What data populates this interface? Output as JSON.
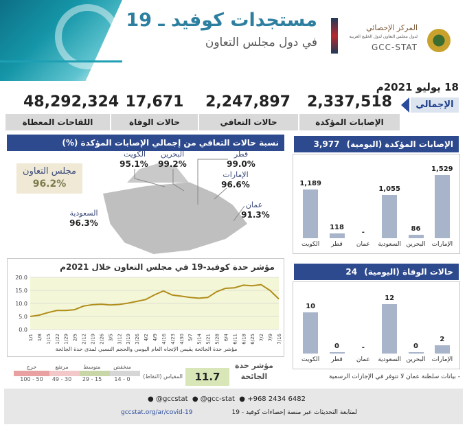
{
  "header": {
    "title": "مستجدات كوفيد ـ 19",
    "subtitle": "في دول مجلس التعاون",
    "org_ar": "المركز الإحصائي",
    "org_sub": "لدول مجلس التعاون لدول الخليج العربية",
    "org_en": "GCC-STAT"
  },
  "date": "18 يوليو 2021م",
  "totals": {
    "badge": "الإجمالي",
    "items": [
      {
        "label": "الإصابات المؤكدة",
        "value": "2,337,518"
      },
      {
        "label": "حالات التعافي",
        "value": "2,247,897"
      },
      {
        "label": "حالات الوفاة",
        "value": "17,671"
      },
      {
        "label": "اللقاحات المعطاة",
        "value": "48,292,324"
      }
    ]
  },
  "recovery_map": {
    "title": "نسبة حالات التعافي من إجمالي الإصابات المؤكدة (%)",
    "gcc_label": "مجلس التعاون",
    "gcc_value": "96.2%",
    "countries": [
      {
        "name": "الكويت",
        "value": "95.1%"
      },
      {
        "name": "البحرين",
        "value": "99.2%"
      },
      {
        "name": "قطر",
        "value": "99.0%"
      },
      {
        "name": "الإمارات",
        "value": "96.6%"
      },
      {
        "name": "عمان",
        "value": "91.3%"
      },
      {
        "name": "السعودية",
        "value": "96.3%"
      }
    ]
  },
  "daily_cases": {
    "title": "الإصابات المؤكدة (اليومية)",
    "total": "3,977"
  },
  "daily_deaths": {
    "title": "حالات الوفاة (اليومية)",
    "total": "24",
    "note": "- بيانات سلطنة عمان لا تتوفر في الإجازات الرسمية"
  },
  "severity": {
    "title": "مؤشر حدة كوفيد-19 في مجلس التعاون خلال 2021م",
    "caption1": "مؤشر حدة الجائحة يقيس الإتجاه العام اليومي والحجم النسبي لمدى حدة الجائحة",
    "caption2": "مؤشر حدة",
    "caption3": "الجائحة",
    "value": "11.7",
    "scale_label": "المقياس (النقاط)",
    "scale": [
      {
        "name": "منخفض",
        "range": "0 - 14",
        "color": "#d6d6d6"
      },
      {
        "name": "متوسط",
        "range": "15 - 29",
        "color": "#c9d7a8"
      },
      {
        "name": "مرتفع",
        "range": "30 - 49",
        "color": "#f3c8c8"
      },
      {
        "name": "حرج",
        "range": "50 - 100",
        "color": "#e9a0a0"
      }
    ]
  },
  "footer": {
    "phone": "+968 2434 6482",
    "handle1": "@gcc-stat",
    "handle2": "@gccstat",
    "link_text": "لمتابعة التحديثات عبر منصة إحصاءات كوفيد - 19",
    "url": "gccstat.org/ar/covid-19"
  },
  "chart_data": [
    {
      "type": "bar",
      "title": "الإصابات المؤكدة (اليومية)",
      "categories": [
        "الكويت",
        "قطر",
        "عمان",
        "السعودية",
        "البحرين",
        "الإمارات"
      ],
      "values": [
        1189,
        118,
        null,
        1055,
        86,
        1529
      ],
      "labels": [
        "1,189",
        "118",
        "-",
        "1,055",
        "86",
        "1,529"
      ]
    },
    {
      "type": "bar",
      "title": "حالات الوفاة (اليومية)",
      "categories": [
        "الكويت",
        "قطر",
        "عمان",
        "السعودية",
        "البحرين",
        "الإمارات"
      ],
      "values": [
        10,
        0,
        null,
        12,
        0,
        2
      ],
      "labels": [
        "10",
        "0",
        "-",
        "12",
        "0",
        "2"
      ]
    },
    {
      "type": "line",
      "title": "مؤشر حدة كوفيد-19 في مجلس التعاون خلال 2021م",
      "ylim": [
        0,
        20
      ],
      "yticks": [
        "0.0",
        "5.0",
        "10.0",
        "15.0",
        "20.0"
      ],
      "x": [
        "1/1",
        "1/8",
        "1/15",
        "1/22",
        "1/29",
        "2/5",
        "2/12",
        "2/19",
        "2/26",
        "3/5",
        "3/12",
        "3/19",
        "3/26",
        "4/2",
        "4/9",
        "4/16",
        "4/23",
        "4/30",
        "5/7",
        "5/14",
        "5/21",
        "5/28",
        "6/4",
        "6/11",
        "6/18",
        "6/25",
        "7/2",
        "7/9",
        "7/16"
      ],
      "y": [
        5.0,
        5.5,
        6.5,
        7.3,
        7.3,
        7.6,
        9.0,
        9.5,
        9.7,
        9.4,
        9.6,
        10.1,
        10.8,
        11.5,
        13.3,
        14.8,
        13.2,
        12.8,
        12.3,
        12.0,
        12.3,
        14.5,
        15.8,
        16.0,
        17.0,
        16.8,
        17.2,
        15.0,
        11.7
      ]
    }
  ]
}
